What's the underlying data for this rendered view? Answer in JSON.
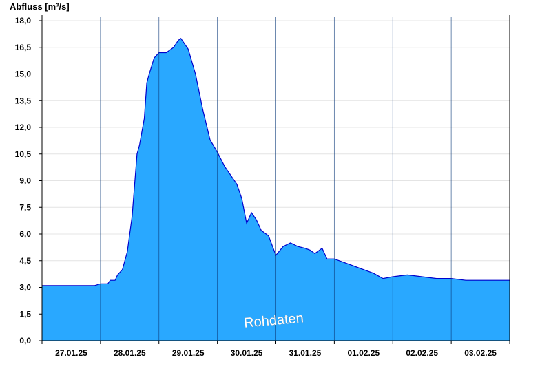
{
  "chart_data": {
    "type": "area",
    "ylabel": "Abfluss [m³/s]",
    "ylim": [
      0,
      18
    ],
    "yticks": [
      "0,0",
      "1,5",
      "3,0",
      "4,5",
      "6,0",
      "7,5",
      "9,0",
      "10,5",
      "12,0",
      "13,5",
      "15,0",
      "16,5",
      "18,0"
    ],
    "xlim": [
      "27.01.25 00:00",
      "03.02.25 24:00"
    ],
    "xticks": [
      "27.01.25",
      "28.01.25",
      "29.01.25",
      "30.01.25",
      "31.01.25",
      "01.02.25",
      "02.02.25",
      "03.02.25"
    ],
    "grid": true,
    "watermark": "Rohdaten",
    "colors": {
      "fill": "#29a8ff",
      "line": "#0000cc",
      "grid": "#e4e4e4"
    },
    "x": [
      "27.01.25 00:00",
      "27.01.25 21:30",
      "28.01.25 00:00",
      "28.01.25 03:00",
      "28.01.25 04:00",
      "28.01.25 06:00",
      "28.01.25 07:00",
      "28.01.25 09:00",
      "28.01.25 11:00",
      "28.01.25 13:00",
      "28.01.25 15:00",
      "28.01.25 16:00",
      "28.01.25 18:00",
      "28.01.25 19:00",
      "28.01.25 20:00",
      "28.01.25 22:00",
      "29.01.25 00:00",
      "29.01.25 03:00",
      "29.01.25 06:00",
      "29.01.25 08:00",
      "29.01.25 09:00",
      "29.01.25 12:00",
      "29.01.25 15:00",
      "29.01.25 18:00",
      "29.01.25 21:00",
      "30.01.25 00:00",
      "30.01.25 03:00",
      "30.01.25 06:00",
      "30.01.25 08:00",
      "30.01.25 10:00",
      "30.01.25 12:00",
      "30.01.25 14:00",
      "30.01.25 16:00",
      "30.01.25 18:00",
      "30.01.25 21:00",
      "31.01.25 00:00",
      "31.01.25 03:00",
      "31.01.25 06:00",
      "31.01.25 09:00",
      "31.01.25 12:00",
      "31.01.25 14:00",
      "31.01.25 16:00",
      "31.01.25 19:00",
      "31.01.25 21:00",
      "01.02.25 00:00",
      "01.02.25 04:00",
      "01.02.25 08:00",
      "01.02.25 12:00",
      "01.02.25 16:00",
      "01.02.25 20:00",
      "02.02.25 00:00",
      "02.02.25 06:00",
      "02.02.25 12:00",
      "02.02.25 18:00",
      "03.02.25 00:00",
      "03.02.25 06:00",
      "03.02.25 12:00",
      "03.02.25 24:00"
    ],
    "y": [
      3.1,
      3.1,
      3.2,
      3.2,
      3.4,
      3.4,
      3.7,
      4.0,
      5.0,
      7.0,
      10.5,
      11.0,
      12.5,
      14.5,
      15.0,
      15.9,
      16.2,
      16.2,
      16.5,
      16.9,
      17.0,
      16.4,
      15.0,
      13.0,
      11.3,
      10.6,
      9.8,
      9.2,
      8.8,
      8.0,
      6.6,
      7.2,
      6.8,
      6.2,
      5.9,
      4.8,
      5.3,
      5.5,
      5.3,
      5.2,
      5.1,
      4.9,
      5.2,
      4.6,
      4.6,
      4.4,
      4.2,
      4.0,
      3.8,
      3.5,
      3.6,
      3.7,
      3.6,
      3.5,
      3.5,
      3.4,
      3.4,
      3.4
    ]
  }
}
